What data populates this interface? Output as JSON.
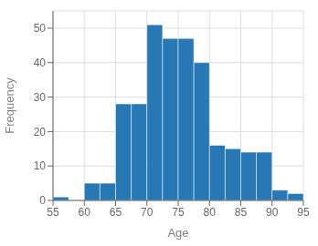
{
  "chart_data": {
    "type": "histogram",
    "bins": [
      55,
      57.5,
      60,
      62.5,
      65,
      67.5,
      70,
      72.5,
      75,
      77.5,
      80,
      82.5,
      85,
      87.5,
      90,
      92.5,
      95
    ],
    "values": [
      1,
      0,
      5,
      5,
      28,
      28,
      51,
      47,
      47,
      40,
      16,
      15,
      14,
      14,
      3,
      2
    ],
    "color": "#2878b5",
    "xlabel": "Age",
    "ylabel": "Frequency",
    "xlim": [
      55,
      95
    ],
    "ylim": [
      0,
      55
    ],
    "xticks": [
      55,
      60,
      65,
      70,
      75,
      80,
      85,
      90,
      95
    ],
    "yticks": [
      0,
      10,
      20,
      30,
      40,
      50
    ],
    "grid": true
  }
}
